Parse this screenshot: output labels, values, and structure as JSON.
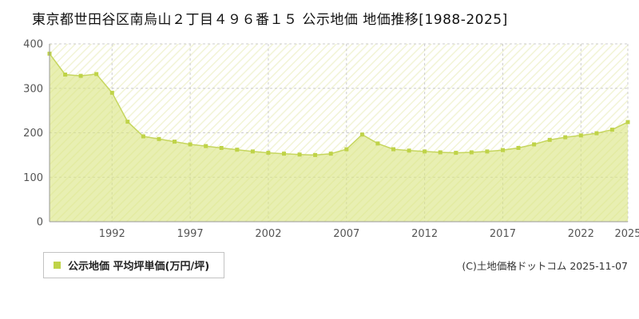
{
  "page": {
    "title": "東京都世田谷区南烏山２丁目４９６番１５ 公示地価 地価推移[1988-2025]",
    "copyright": "(C)土地価格ドットコム 2025-11-07"
  },
  "legend": {
    "label": "公示地価 平均坪単価(万円/坪)",
    "marker_color": "#bfd348"
  },
  "chart_data": {
    "type": "area",
    "title": "東京都世田谷区南烏山２丁目４９６番１５ 公示地価 地価推移[1988-2025]",
    "series_name": "公示地価",
    "ylabel": "平均坪単価(万円/坪)",
    "xlabel": "",
    "ylim": [
      0,
      400
    ],
    "yticks": [
      0,
      100,
      200,
      300,
      400
    ],
    "xticks": [
      1992,
      1997,
      2002,
      2007,
      2012,
      2017,
      2022,
      2025
    ],
    "grid": true,
    "legend_position": "bottom-left",
    "x": [
      1988,
      1989,
      1990,
      1991,
      1992,
      1993,
      1994,
      1995,
      1996,
      1997,
      1998,
      1999,
      2000,
      2001,
      2002,
      2003,
      2004,
      2005,
      2006,
      2007,
      2008,
      2009,
      2010,
      2011,
      2012,
      2013,
      2014,
      2015,
      2016,
      2017,
      2018,
      2019,
      2020,
      2021,
      2022,
      2023,
      2024,
      2025
    ],
    "values": [
      378,
      331,
      328,
      332,
      290,
      225,
      192,
      186,
      180,
      174,
      170,
      166,
      162,
      158,
      155,
      153,
      151,
      150,
      153,
      163,
      196,
      176,
      163,
      160,
      158,
      156,
      155,
      156,
      158,
      161,
      166,
      174,
      184,
      190,
      194,
      199,
      207,
      224
    ],
    "colors": {
      "fill": "#d8e57f",
      "line": "#c6d65e",
      "marker": "#bfd348",
      "grid": "#cccccc",
      "axis": "#999999",
      "tick": "#555555"
    }
  }
}
